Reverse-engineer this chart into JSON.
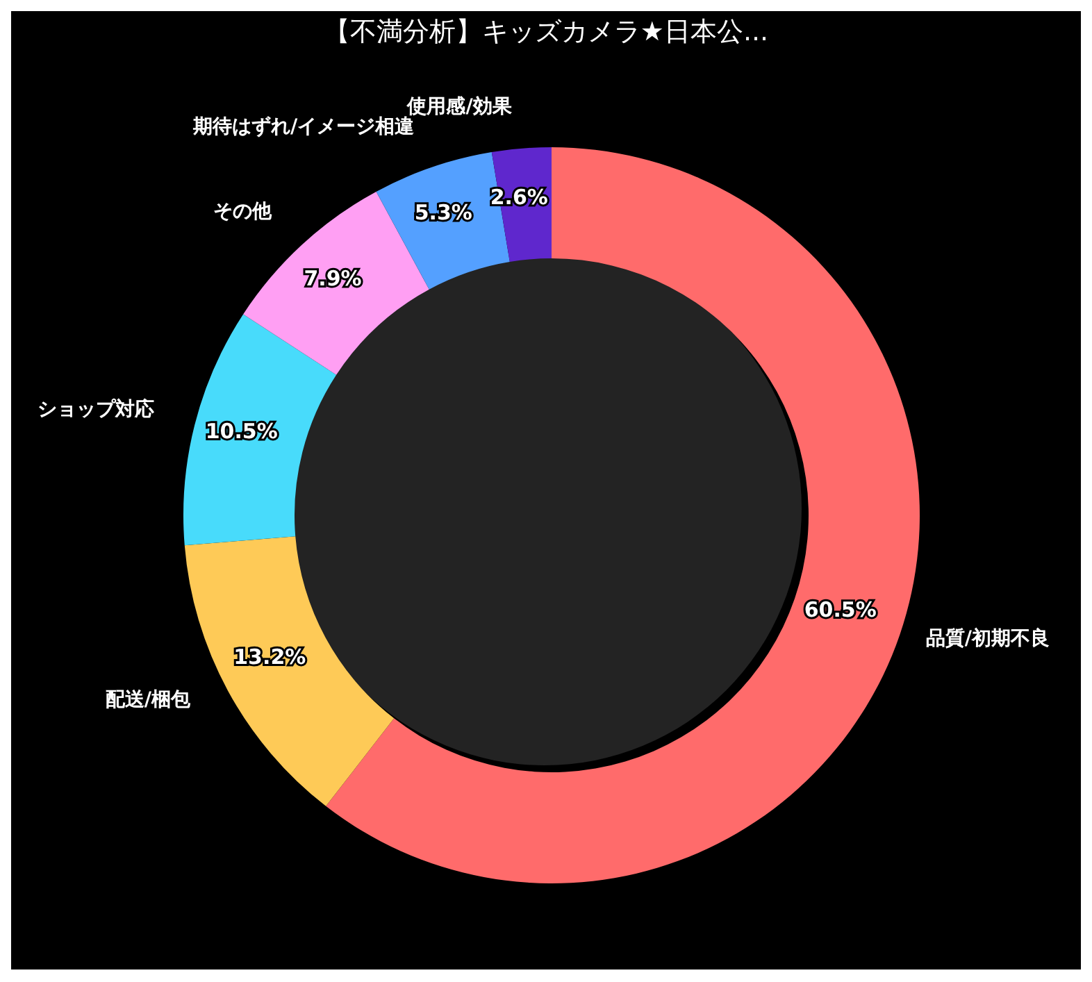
{
  "chart_data": {
    "type": "donut",
    "title": "【不満分析】キッズカメラ★日本公...",
    "categories": [
      "品質/初期不良",
      "配送/梱包",
      "ショップ対応",
      "その他",
      "期待はずれ/イメージ相違",
      "使用感/効果"
    ],
    "values": [
      60.5,
      13.2,
      10.5,
      7.9,
      5.3,
      2.6
    ],
    "value_labels": [
      "60.5%",
      "13.2%",
      "10.5%",
      "7.9%",
      "5.3%",
      "2.6%"
    ],
    "colors": [
      "#ff6b6b",
      "#feca57",
      "#48dbfb",
      "#ff9ff3",
      "#54a0ff",
      "#5f27cd"
    ],
    "legend": false
  }
}
